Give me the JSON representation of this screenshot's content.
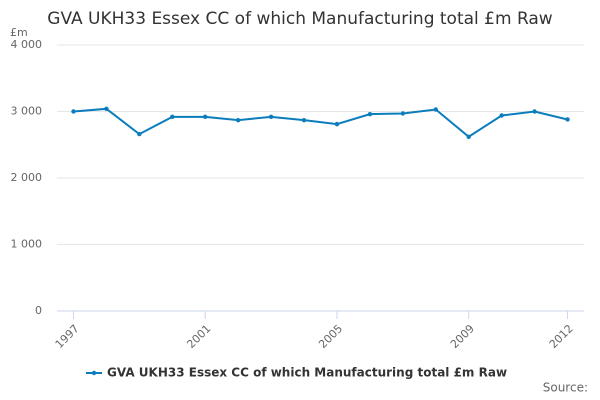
{
  "chart_data": {
    "type": "line",
    "title": "GVA UKH33 Essex CC of which Manufacturing total £m Raw",
    "y_label": "£m",
    "source": "Source:",
    "x": [
      1997,
      1998,
      1999,
      2000,
      2001,
      2002,
      2003,
      2004,
      2005,
      2006,
      2007,
      2008,
      2009,
      2010,
      2011,
      2012
    ],
    "series": [
      {
        "name": "GVA UKH33 Essex CC of which Manufacturing total £m Raw",
        "color": "#0b7dbd",
        "values": [
          3000,
          3040,
          2660,
          2920,
          2920,
          2870,
          2920,
          2870,
          2810,
          2960,
          2970,
          3030,
          2620,
          2940,
          3000,
          2880
        ]
      }
    ],
    "xlim": [
      1996.5,
      2012.5
    ],
    "xticks": [
      1997,
      2001,
      2005,
      2009,
      2012
    ],
    "ylim": [
      0,
      4000
    ],
    "yticks": [
      0,
      {
        "value": 1000,
        "label": "1 000"
      },
      {
        "value": 2000,
        "label": "2 000"
      },
      {
        "value": 3000,
        "label": "3 000"
      },
      {
        "value": 4000,
        "label": "4 000"
      }
    ],
    "grid": true,
    "legend": "bottom"
  }
}
